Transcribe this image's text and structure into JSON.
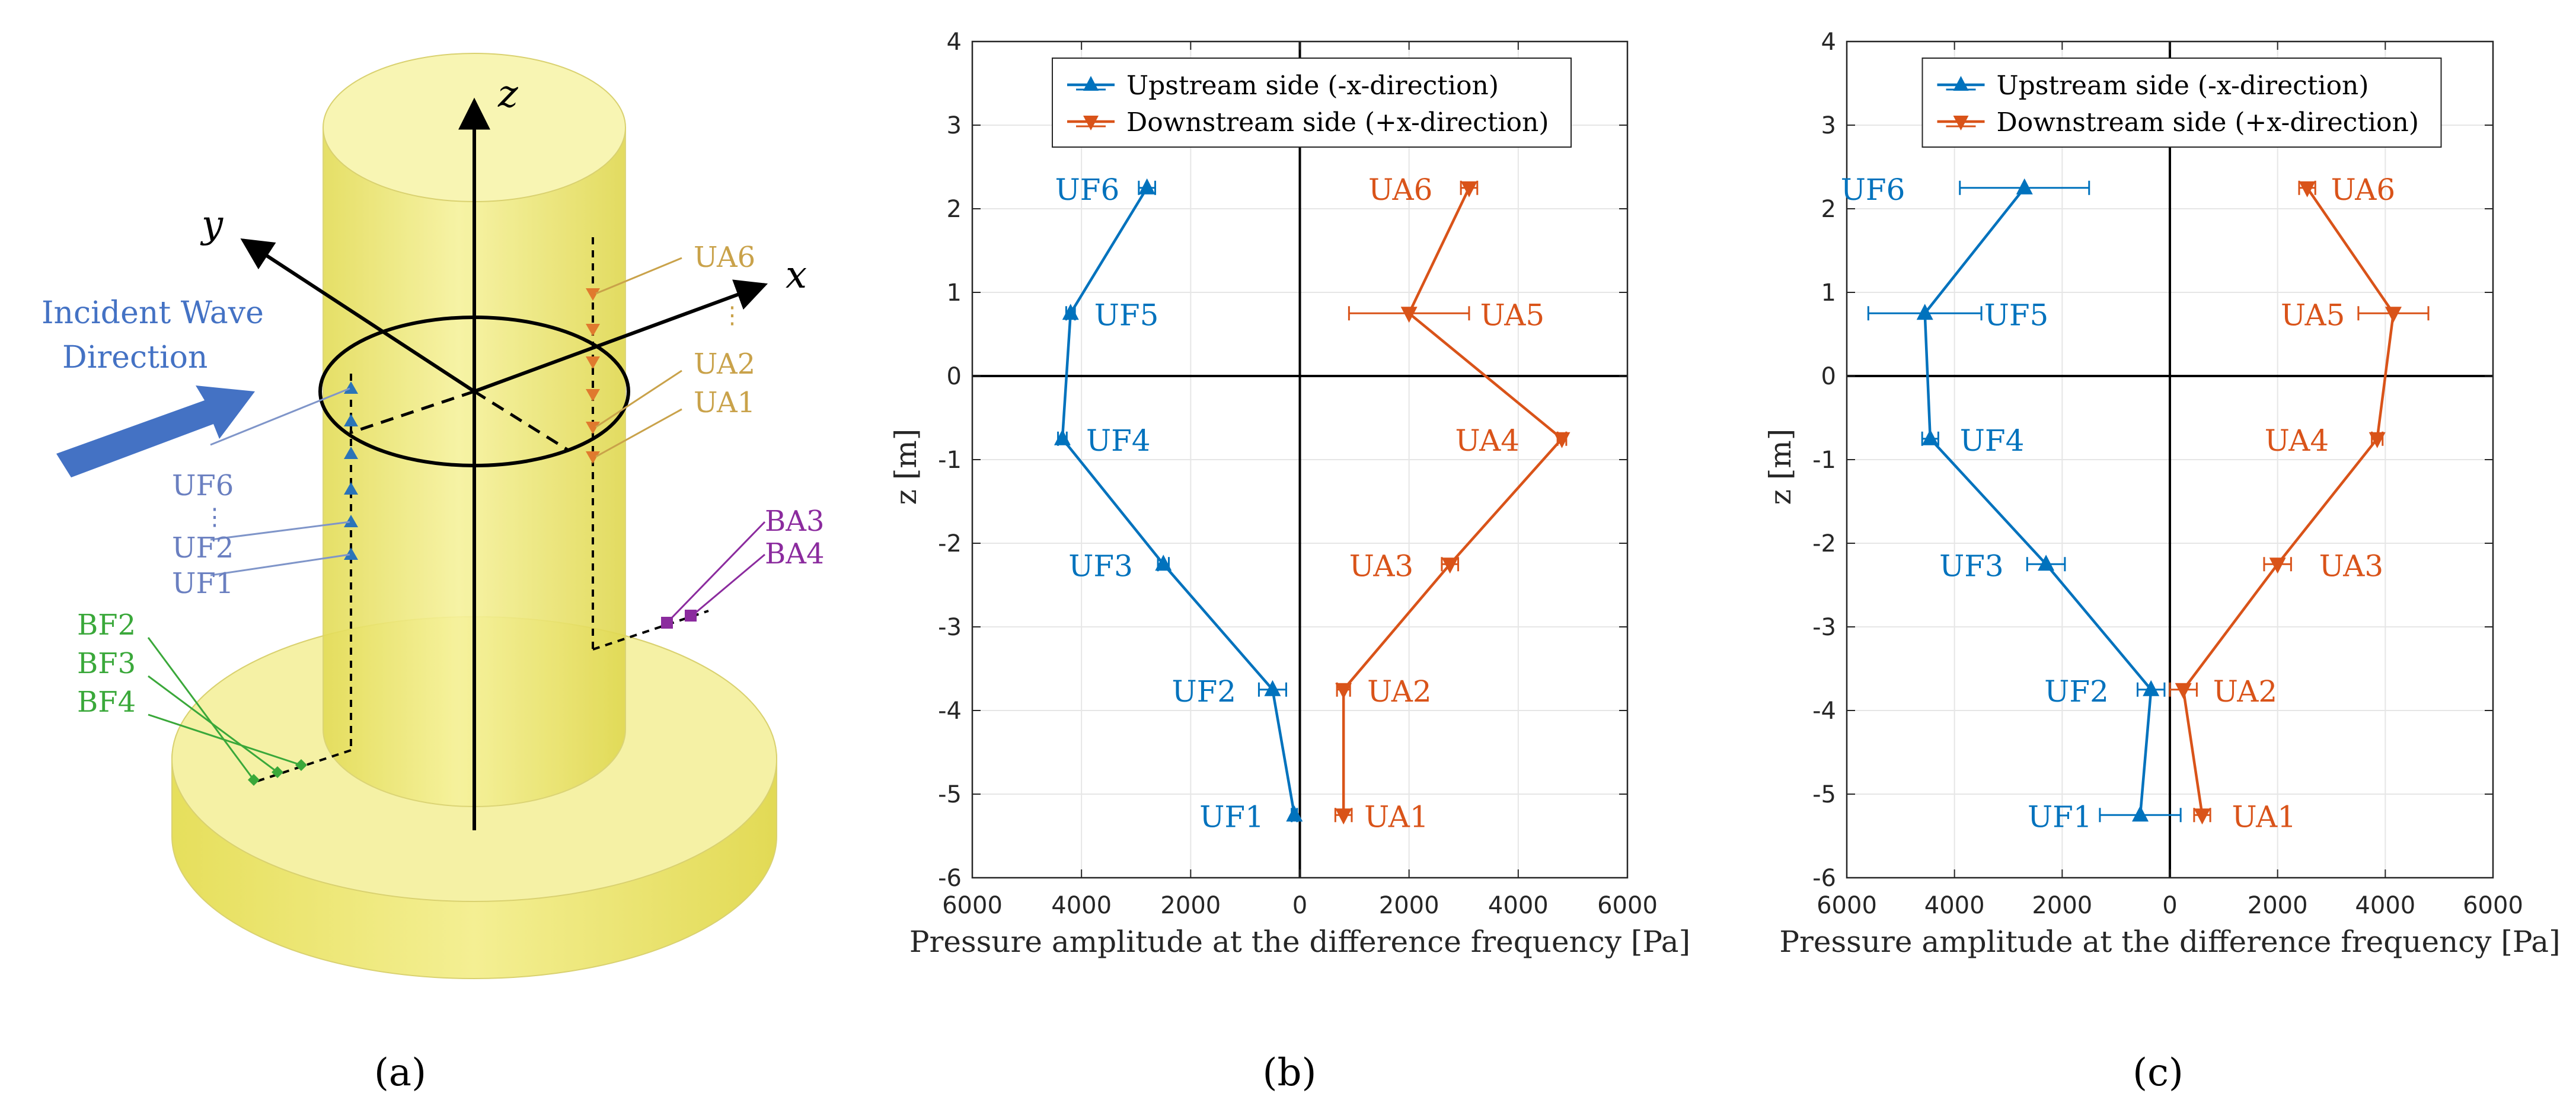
{
  "panels": {
    "a": {
      "label": "(a)",
      "axes": {
        "x": "x",
        "y": "y",
        "z": "z"
      },
      "wave_label": [
        "Incident Wave",
        "Direction"
      ],
      "upstream_labels": [
        "UF6",
        "⋮",
        "UF2",
        "UF1"
      ],
      "downstream_labels": [
        "UA6",
        "⋮",
        "UA2",
        "UA1"
      ],
      "bottom_front_labels": [
        "BF2",
        "BF3",
        "BF4"
      ],
      "bottom_aft_labels": [
        "BA3",
        "BA4"
      ],
      "colors": {
        "cylinder": "#f3ef8c",
        "upstream": "#2a74b8",
        "downstream": "#c9a24a",
        "bottom_front": "#3aa83a",
        "bottom_aft": "#8b2b9e",
        "wave_arrow": "#4472c4"
      }
    },
    "b": {
      "label": "(b)"
    },
    "c": {
      "label": "(c)"
    }
  },
  "chart_data": [
    {
      "type": "line",
      "panel": "b",
      "xlabel": "Pressure amplitude at the difference frequency [Pa]",
      "ylabel": "z [m]",
      "xlim": [
        -6000,
        6000
      ],
      "ylim": [
        -6,
        4
      ],
      "xticks": [
        -6000,
        -4000,
        -2000,
        0,
        2000,
        4000,
        6000
      ],
      "xtick_labels": [
        "6000",
        "4000",
        "2000",
        "0",
        "2000",
        "4000",
        "6000"
      ],
      "yticks": [
        -6,
        -5,
        -4,
        -3,
        -2,
        -1,
        0,
        1,
        2,
        3,
        4
      ],
      "grid": true,
      "legend": "top",
      "series": [
        {
          "name": "Upstream side (-x-direction)",
          "color": "#0072bd",
          "marker": "triangle-up",
          "points": [
            {
              "label": "UF1",
              "x": -100,
              "z": -5.25,
              "err": 50
            },
            {
              "label": "UF2",
              "x": -500,
              "z": -3.75,
              "err": 250
            },
            {
              "label": "UF3",
              "x": -2500,
              "z": -2.25,
              "err": 100
            },
            {
              "label": "UF4",
              "x": -4350,
              "z": -0.75,
              "err": 80
            },
            {
              "label": "UF5",
              "x": -4200,
              "z": 0.75,
              "err": 80
            },
            {
              "label": "UF6",
              "x": -2800,
              "z": 2.25,
              "err": 150
            }
          ]
        },
        {
          "name": "Downstream side (+x-direction)",
          "color": "#d95319",
          "marker": "triangle-down",
          "points": [
            {
              "label": "UA1",
              "x": 800,
              "z": -5.25,
              "err": 150
            },
            {
              "label": "UA2",
              "x": 800,
              "z": -3.75,
              "err": 120
            },
            {
              "label": "UA3",
              "x": 2750,
              "z": -2.25,
              "err": 150
            },
            {
              "label": "UA4",
              "x": 4800,
              "z": -0.75,
              "err": 80
            },
            {
              "label": "UA5",
              "x": 2000,
              "z": 0.75,
              "err": 1100
            },
            {
              "label": "UA6",
              "x": 3100,
              "z": 2.25,
              "err": 150
            }
          ]
        }
      ]
    },
    {
      "type": "line",
      "panel": "c",
      "xlabel": "Pressure amplitude at the difference frequency [Pa]",
      "ylabel": "z [m]",
      "xlim": [
        -6000,
        6000
      ],
      "ylim": [
        -6,
        4
      ],
      "xticks": [
        -6000,
        -4000,
        -2000,
        0,
        2000,
        4000,
        6000
      ],
      "xtick_labels": [
        "6000",
        "4000",
        "2000",
        "0",
        "2000",
        "4000",
        "6000"
      ],
      "yticks": [
        -6,
        -5,
        -4,
        -3,
        -2,
        -1,
        0,
        1,
        2,
        3,
        4
      ],
      "grid": true,
      "legend": "top",
      "series": [
        {
          "name": "Upstream side (-x-direction)",
          "color": "#0072bd",
          "marker": "triangle-up",
          "points": [
            {
              "label": "UF1",
              "x": -550,
              "z": -5.25,
              "err": 750
            },
            {
              "label": "UF2",
              "x": -350,
              "z": -3.75,
              "err": 250
            },
            {
              "label": "UF3",
              "x": -2300,
              "z": -2.25,
              "err": 350
            },
            {
              "label": "UF4",
              "x": -4450,
              "z": -0.75,
              "err": 150
            },
            {
              "label": "UF5",
              "x": -4550,
              "z": 0.75,
              "err": 1050
            },
            {
              "label": "UF6",
              "x": -2700,
              "z": 2.25,
              "err": 1200
            }
          ]
        },
        {
          "name": "Downstream side (+x-direction)",
          "color": "#d95319",
          "marker": "triangle-down",
          "points": [
            {
              "label": "UA1",
              "x": 600,
              "z": -5.25,
              "err": 150
            },
            {
              "label": "UA2",
              "x": 250,
              "z": -3.75,
              "err": 250
            },
            {
              "label": "UA3",
              "x": 2000,
              "z": -2.25,
              "err": 250
            },
            {
              "label": "UA4",
              "x": 3850,
              "z": -0.75,
              "err": 100
            },
            {
              "label": "UA5",
              "x": 4150,
              "z": 0.75,
              "err": 650
            },
            {
              "label": "UA6",
              "x": 2550,
              "z": 2.25,
              "err": 150
            }
          ]
        }
      ]
    }
  ]
}
